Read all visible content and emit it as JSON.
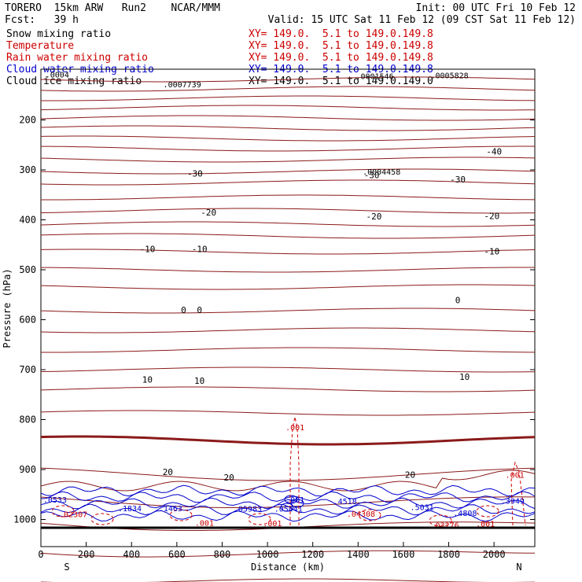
{
  "header": {
    "model": "TORERO  15km ARW   Run2    NCAR/MMM",
    "init": "Init: 00 UTC Fri 10 Feb 12",
    "forecast": "Fcst:   39 h",
    "valid": "Valid: 15 UTC Sat 11 Feb 12 (09 CST Sat 11 Feb 12)"
  },
  "fields": [
    {
      "name": "Snow mixing ratio",
      "xy": "XY= 149.0.  5.1 to 149.0.149.8",
      "color": "#000000"
    },
    {
      "name": "Temperature",
      "xy": "XY= 149.0.  5.1 to 149.0.149.8",
      "color": "#cc0000"
    },
    {
      "name": "Rain water mixing ratio",
      "xy": "XY= 149.0.  5.1 to 149.0.149.8",
      "color": "#cc0000"
    },
    {
      "name": "Cloud water mixing ratio",
      "xy": "XY= 149.0.  5.1 to 149.0.149.8",
      "color": "#0000cc"
    },
    {
      "name": "Cloud ice mixing ratio",
      "xy": "XY= 149.0.  5.1 to 149.0.149.0",
      "color": "#000000"
    }
  ],
  "chart_data": {
    "type": "contour cross-section",
    "xlabel": "Distance (km)",
    "ylabel": "Pressure (hPa)",
    "xlim": [
      0,
      2180
    ],
    "ylim": [
      1000,
      100
    ],
    "xticks": [
      0,
      200,
      400,
      600,
      800,
      1000,
      1200,
      1400,
      1600,
      1800,
      2000
    ],
    "yticks": [
      200,
      300,
      400,
      500,
      600,
      700,
      800,
      900,
      1000
    ],
    "ends": {
      "left": "S",
      "right": "N"
    },
    "colors": {
      "temperature": "#8b1a1a",
      "rain": "#cc0000",
      "cloud_water": "#0000cc",
      "snow_ice": "#000000"
    },
    "temperature_labels": [
      {
        "x": 680,
        "p": 307,
        "text": "-30"
      },
      {
        "x": 1460,
        "p": 310,
        "text": "-30"
      },
      {
        "x": 1840,
        "p": 319,
        "text": "-30"
      },
      {
        "x": 2000,
        "p": 263,
        "text": "-40"
      },
      {
        "x": 740,
        "p": 385,
        "text": "-20"
      },
      {
        "x": 1470,
        "p": 393,
        "text": "-20"
      },
      {
        "x": 1990,
        "p": 392,
        "text": "-20"
      },
      {
        "x": 470,
        "p": 458,
        "text": "-10"
      },
      {
        "x": 700,
        "p": 458,
        "text": "-10"
      },
      {
        "x": 1990,
        "p": 463,
        "text": "-10"
      },
      {
        "x": 630,
        "p": 580,
        "text": "0"
      },
      {
        "x": 700,
        "p": 580,
        "text": "0"
      },
      {
        "x": 1840,
        "p": 561,
        "text": "0"
      },
      {
        "x": 470,
        "p": 720,
        "text": "10"
      },
      {
        "x": 700,
        "p": 722,
        "text": "10"
      },
      {
        "x": 1870,
        "p": 714,
        "text": "10"
      },
      {
        "x": 560,
        "p": 905,
        "text": "20"
      },
      {
        "x": 830,
        "p": 916,
        "text": "20"
      },
      {
        "x": 1630,
        "p": 910,
        "text": "20"
      }
    ],
    "max_labels": [
      {
        "x": 540,
        "p": 128,
        "text": ".0007739",
        "color": "#000000"
      },
      {
        "x": 1390,
        "p": 112,
        "text": ".0001546",
        "color": "#000000"
      },
      {
        "x": 1720,
        "p": 110,
        "text": ".0005828",
        "color": "#000000"
      },
      {
        "x": 1420,
        "p": 303,
        "text": ".0004458",
        "color": "#000000"
      },
      {
        "x": 20,
        "p": 109,
        "text": ".0004",
        "color": "#000000"
      },
      {
        "x": 1080,
        "p": 815,
        "text": ".001",
        "color": "#cc0000"
      },
      {
        "x": 2050,
        "p": 910,
        "text": ".001",
        "color": "#cc0000"
      },
      {
        "x": 1080,
        "p": 960,
        "text": ".001",
        "color": "#0000cc"
      },
      {
        "x": 10,
        "p": 960,
        "text": ".0533",
        "color": "#0000cc"
      },
      {
        "x": 340,
        "p": 977,
        "text": ".1834",
        "color": "#0000cc"
      },
      {
        "x": 520,
        "p": 977,
        "text": ".1463",
        "color": "#0000cc"
      },
      {
        "x": 850,
        "p": 978,
        "text": ".05983",
        "color": "#0000cc"
      },
      {
        "x": 1030,
        "p": 978,
        "text": ".05441",
        "color": "#0000cc"
      },
      {
        "x": 1290,
        "p": 963,
        "text": ".4518",
        "color": "#0000cc"
      },
      {
        "x": 1630,
        "p": 975,
        "text": ".5031",
        "color": "#0000cc"
      },
      {
        "x": 1820,
        "p": 987,
        "text": ".4808",
        "color": "#0000cc"
      },
      {
        "x": 2030,
        "p": 962,
        "text": ".3949",
        "color": "#0000cc"
      },
      {
        "x": 80,
        "p": 989,
        "text": ".02307",
        "color": "#cc0000"
      },
      {
        "x": 680,
        "p": 1006,
        "text": ".001",
        "color": "#cc0000"
      },
      {
        "x": 980,
        "p": 1007,
        "text": ".001",
        "color": "#cc0000"
      },
      {
        "x": 1350,
        "p": 988,
        "text": ".04308",
        "color": "#cc0000"
      },
      {
        "x": 1720,
        "p": 1011,
        "text": ".03276",
        "color": "#cc0000"
      },
      {
        "x": 1920,
        "p": 1008,
        "text": ".001",
        "color": "#cc0000"
      }
    ]
  }
}
